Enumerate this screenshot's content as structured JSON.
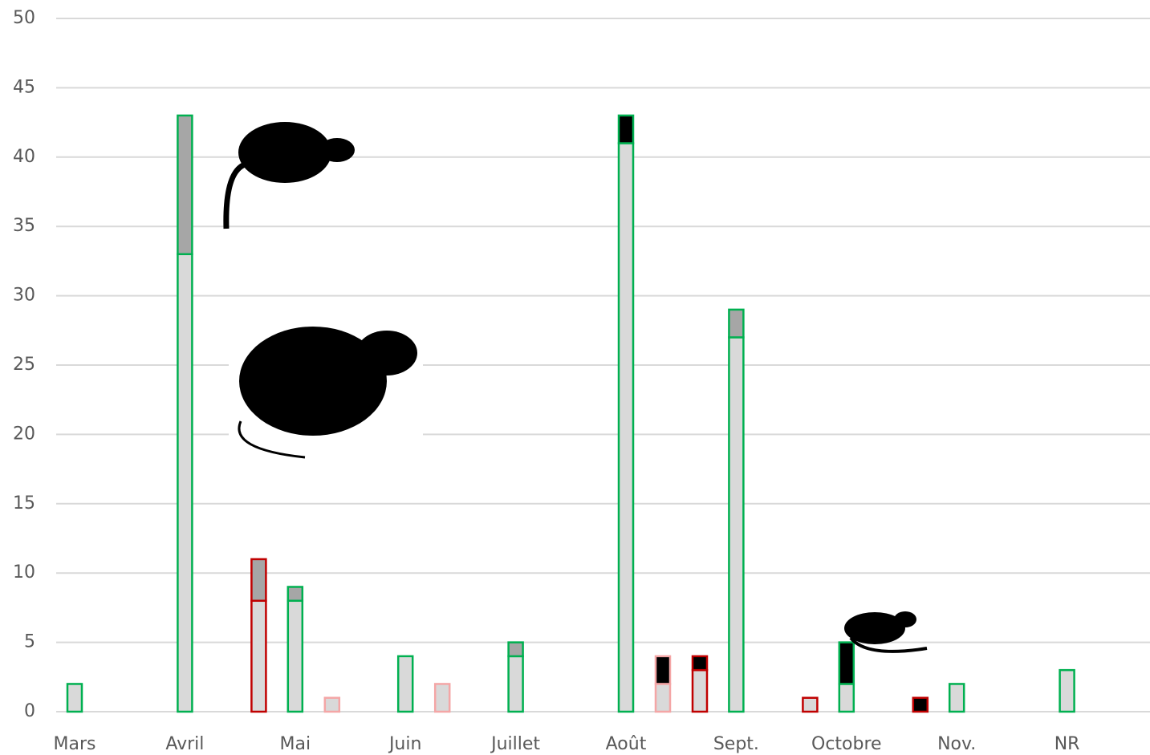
{
  "chart_data": {
    "type": "bar",
    "categories": [
      "Mars",
      "Avril",
      "Mai",
      "Juin",
      "Juillet",
      "Août",
      "Sept.",
      "Octobre",
      "Nov.",
      "NR"
    ],
    "stack_colors": [
      "#00b050",
      "#f4a6a6",
      "#c00000"
    ],
    "series": [
      {
        "stack": 0,
        "color": "#d9d9d9",
        "values": [
          2,
          33,
          8,
          4,
          4,
          41,
          27,
          2,
          2,
          3
        ]
      },
      {
        "stack": 0,
        "color": "#a6a6a6",
        "values": [
          0,
          10,
          1,
          0,
          1,
          0,
          2,
          0,
          0,
          0
        ]
      },
      {
        "stack": 0,
        "color": "#000000",
        "values": [
          0,
          0,
          0,
          0,
          0,
          2,
          0,
          3,
          0,
          0
        ]
      },
      {
        "stack": 1,
        "color": "#d9d9d9",
        "values": [
          0,
          0,
          1,
          2,
          0,
          2,
          0,
          0,
          0,
          0
        ]
      },
      {
        "stack": 1,
        "color": "#000000",
        "values": [
          0,
          0,
          0,
          0,
          0,
          2,
          0,
          0,
          0,
          0
        ]
      },
      {
        "stack": 2,
        "color": "#d9d9d9",
        "values": [
          0,
          8,
          0,
          0,
          0,
          3,
          1,
          0,
          0,
          0
        ]
      },
      {
        "stack": 2,
        "color": "#a6a6a6",
        "values": [
          0,
          3,
          0,
          0,
          0,
          0,
          0,
          0,
          0,
          0
        ]
      },
      {
        "stack": 2,
        "color": "#000000",
        "values": [
          0,
          0,
          0,
          0,
          0,
          1,
          0,
          1,
          0,
          0
        ]
      }
    ],
    "ylim": [
      0,
      50
    ],
    "yticks": [
      0,
      5,
      10,
      15,
      20,
      25,
      30,
      35,
      40,
      45,
      50
    ],
    "grid": true
  }
}
